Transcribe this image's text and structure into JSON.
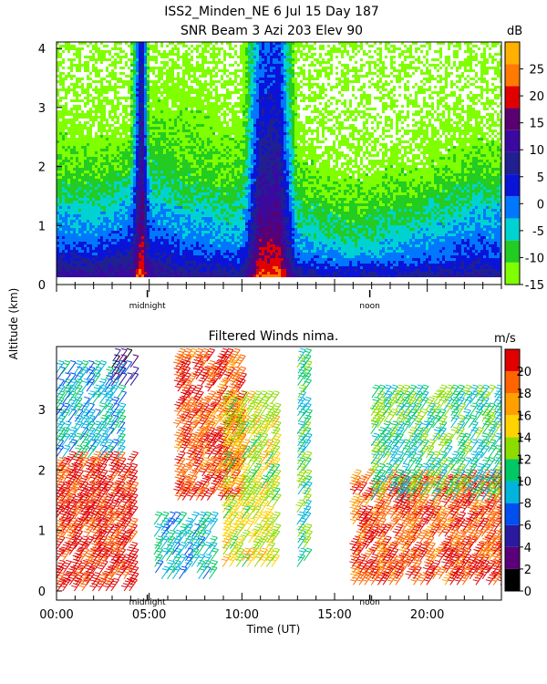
{
  "title": {
    "line1": "ISS2_Minden_NE    6 Jul 15 Day 187",
    "line2": "SNR Beam 3 Azi 203 Elev 90"
  },
  "shared_ylabel": "Altitude (km)",
  "chart_data": [
    {
      "type": "heatmap",
      "title": "SNR Beam 3 Azi 203 Elev 90",
      "xlabel": "Time (UT)",
      "ylabel": "Altitude (km)",
      "xlim": [
        0,
        24
      ],
      "ylim": [
        0,
        4.2
      ],
      "yticks": [
        0,
        1,
        2,
        3,
        4
      ],
      "time_markers": [
        {
          "label": "midnight",
          "x": 4.9
        },
        {
          "label": "noon",
          "x": 16.9
        }
      ],
      "colorbar": {
        "unit": "dB",
        "range": [
          -15,
          30
        ],
        "ticks": [
          -15,
          -10,
          -5,
          0,
          5,
          10,
          15,
          20,
          25
        ],
        "colors": [
          "#7fff00",
          "#22cc22",
          "#00d2d2",
          "#0077ff",
          "#0a14d8",
          "#202090",
          "#3a0aa0",
          "#5a0070",
          "#e10000",
          "#ff7a00",
          "#ffb000"
        ]
      },
      "profile_time": [
        0,
        2,
        4,
        4.6,
        5.0,
        6,
        7,
        8,
        9,
        10,
        11,
        12,
        13,
        14,
        15,
        16,
        17,
        18,
        19,
        20,
        21,
        22,
        22.8,
        23.4,
        24
      ],
      "profile_altitudes": [
        0.15,
        0.3,
        0.5,
        0.8,
        1.2,
        1.6,
        2.0,
        2.5,
        3.0,
        3.6,
        4.2
      ],
      "profile_snr_db": [
        [
          10,
          8,
          4,
          0,
          -3,
          -8,
          -11,
          -13,
          -14,
          -15,
          -15
        ],
        [
          10,
          8,
          3,
          -1,
          -5,
          -8,
          -11,
          -13,
          -14,
          -15,
          -15
        ],
        [
          12,
          9,
          6,
          2,
          -2,
          -6,
          -10,
          -13,
          -14,
          -15,
          -15
        ],
        [
          25,
          22,
          20,
          18,
          16,
          14,
          12,
          11,
          10,
          9,
          8
        ],
        [
          12,
          10,
          6,
          2,
          -2,
          -5,
          -8,
          -11,
          -13,
          -14,
          -15
        ],
        [
          10,
          8,
          4,
          0,
          -3,
          -7,
          -9,
          -11,
          -13,
          -14,
          -15
        ],
        [
          9,
          6,
          3,
          -1,
          -4,
          -8,
          -10,
          -12,
          -13,
          -14,
          -15
        ],
        [
          9,
          6,
          2,
          -1,
          -4,
          -8,
          -10,
          -12,
          -13,
          -14,
          -15
        ],
        [
          8,
          5,
          1,
          -3,
          -6,
          -9,
          -11,
          -13,
          -14,
          -15,
          -15
        ],
        [
          8,
          5,
          1,
          -3,
          -6,
          -9,
          -11,
          -13,
          -14,
          -15,
          -15
        ],
        [
          23,
          20,
          18,
          15,
          13,
          10,
          8,
          6,
          4,
          2,
          0
        ],
        [
          24,
          21,
          19,
          16,
          14,
          11,
          9,
          7,
          5,
          3,
          1
        ],
        [
          8,
          4,
          0,
          -4,
          -7,
          -10,
          -12,
          -14,
          -15,
          -15,
          -15
        ],
        [
          7,
          3,
          -1,
          -5,
          -8,
          -11,
          -13,
          -14,
          -15,
          -15,
          -15
        ],
        [
          6,
          2,
          -2,
          -6,
          -9,
          -12,
          -14,
          -15,
          -15,
          -15,
          -15
        ],
        [
          6,
          2,
          -3,
          -7,
          -10,
          -12,
          -14,
          -15,
          -15,
          -15,
          -15
        ],
        [
          7,
          3,
          -2,
          -6,
          -9,
          -12,
          -14,
          -15,
          -15,
          -15,
          -15
        ],
        [
          7,
          3,
          -2,
          -5,
          -8,
          -11,
          -13,
          -15,
          -15,
          -15,
          -15
        ],
        [
          7,
          3,
          -1,
          -4,
          -8,
          -11,
          -13,
          -15,
          -15,
          -15,
          -15
        ],
        [
          8,
          4,
          0,
          -3,
          -7,
          -10,
          -13,
          -14,
          -15,
          -15,
          -15
        ],
        [
          8,
          4,
          1,
          -2,
          -6,
          -9,
          -12,
          -14,
          -15,
          -15,
          -15
        ],
        [
          8,
          5,
          2,
          -1,
          -5,
          -8,
          -11,
          -14,
          -15,
          -15,
          -15
        ],
        [
          9,
          6,
          3,
          0,
          -3,
          -7,
          -10,
          -13,
          -15,
          -15,
          -15
        ],
        [
          8,
          5,
          2,
          -1,
          -4,
          -8,
          -11,
          -14,
          -15,
          -15,
          -15
        ],
        [
          8,
          5,
          2,
          0,
          -3,
          -7,
          -10,
          -13,
          -15,
          -15,
          -15
        ]
      ]
    },
    {
      "type": "barbs",
      "title": "Filtered Winds nima.",
      "xlabel": "Time (UT)",
      "ylabel": "Altitude (km)",
      "xlim": [
        0,
        24
      ],
      "ylim": [
        0,
        4.0
      ],
      "xticks": [
        0,
        5,
        10,
        15,
        20
      ],
      "xticklabels": [
        "00:00",
        "05:00",
        "10:00",
        "15:00",
        "20:00"
      ],
      "yticks": [
        0,
        1,
        2,
        3
      ],
      "time_markers": [
        {
          "label": "midnight",
          "x": 4.9
        },
        {
          "label": "noon",
          "x": 16.9
        }
      ],
      "colorbar": {
        "unit": "m/s",
        "range": [
          0,
          22
        ],
        "ticks": [
          0,
          2,
          4,
          6,
          8,
          10,
          12,
          14,
          16,
          18,
          20
        ],
        "colors": [
          "#000000",
          "#5a0078",
          "#2a1aa0",
          "#0050f0",
          "#00b4dc",
          "#00c864",
          "#8cdc00",
          "#ffd200",
          "#ffa000",
          "#ff6400",
          "#e10000"
        ]
      },
      "wind_regions": [
        {
          "t": [
            0,
            4
          ],
          "alt": [
            0,
            2.2
          ],
          "speed_ms": 21
        },
        {
          "t": [
            0,
            3.5
          ],
          "alt": [
            2.2,
            3.7
          ],
          "speed_ms": 9
        },
        {
          "t": [
            3,
            4
          ],
          "alt": [
            3.4,
            3.9
          ],
          "speed_ms": 4
        },
        {
          "t": [
            5.3,
            8.5
          ],
          "alt": [
            0.2,
            1.2
          ],
          "speed_ms": 9
        },
        {
          "t": [
            6.5,
            10
          ],
          "alt": [
            1.5,
            3.9
          ],
          "speed_ms": 20
        },
        {
          "t": [
            9,
            11.8
          ],
          "alt": [
            0.4,
            3.2
          ],
          "speed_ms": 14
        },
        {
          "t": [
            13,
            13.6
          ],
          "alt": [
            0.4,
            3.9
          ],
          "speed_ms": 11
        },
        {
          "t": [
            16,
            24
          ],
          "alt": [
            0.1,
            1.9
          ],
          "speed_ms": 20
        },
        {
          "t": [
            17,
            24
          ],
          "alt": [
            1.5,
            3.3
          ],
          "speed_ms": 11
        }
      ]
    }
  ]
}
